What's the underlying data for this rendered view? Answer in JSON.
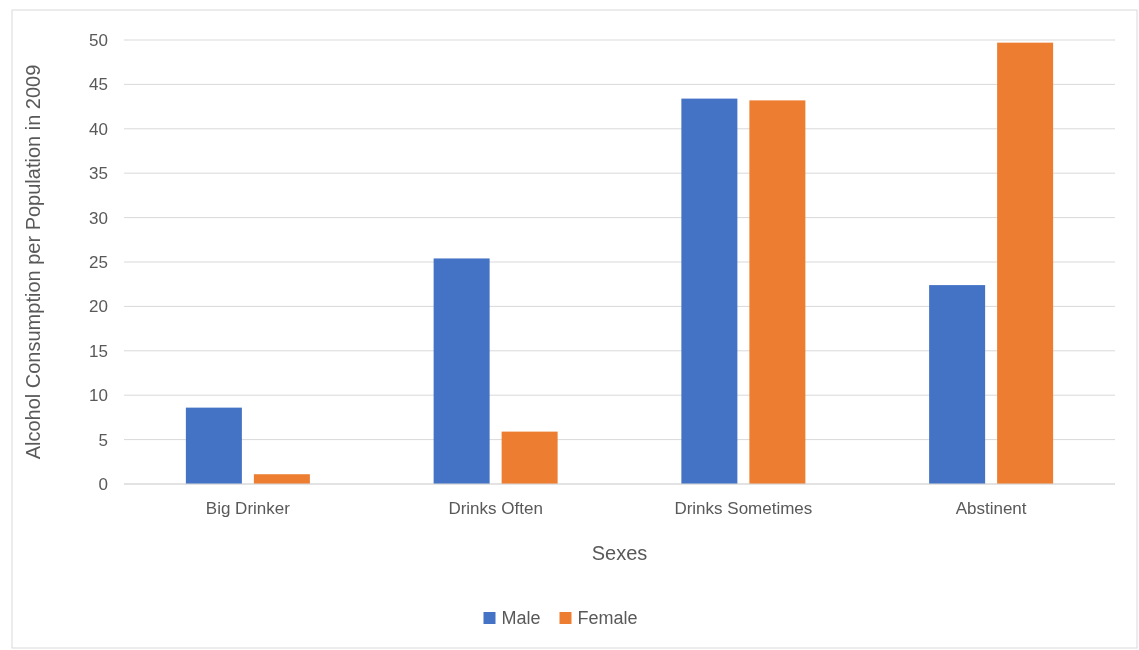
{
  "chart_data": {
    "type": "bar",
    "xlabel": "Sexes",
    "ylabel": "Alcohol Consumption per Population in 2009",
    "categories": [
      "Big Drinker",
      "Drinks Often",
      "Drinks Sometimes",
      "Abstinent"
    ],
    "series": [
      {
        "name": "Male",
        "color": "#4472c4",
        "values": [
          8.6,
          25.4,
          43.4,
          22.4
        ]
      },
      {
        "name": "Female",
        "color": "#ed7d31",
        "values": [
          1.1,
          5.9,
          43.2,
          49.7
        ]
      }
    ],
    "ylim": [
      0,
      50
    ],
    "yticks": [
      0,
      5,
      10,
      15,
      20,
      25,
      30,
      35,
      40,
      45,
      50
    ],
    "grid": "y",
    "legend": "bottom"
  }
}
